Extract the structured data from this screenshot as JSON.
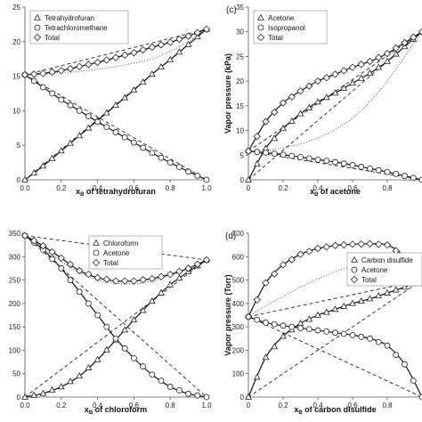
{
  "chart_data": [
    {
      "type": "line",
      "panel_label": "",
      "xlabel": "x_B of tetrahydrofuran",
      "ylabel": "",
      "xlim": [
        0,
        1.0
      ],
      "ylim": [
        0,
        25
      ],
      "xticks": [
        "0.0",
        "0.2",
        "0.4",
        "0.6",
        "0.8",
        "1.0"
      ],
      "yticks": [
        "0",
        "5",
        "10",
        "15",
        "20",
        "25"
      ],
      "legend_position": "top-left",
      "series": [
        {
          "name": "Tetrahydrofuran",
          "marker": "triangle",
          "x": [
            0,
            0.1,
            0.2,
            0.3,
            0.4,
            0.5,
            0.6,
            0.7,
            0.8,
            0.9,
            1.0
          ],
          "y": [
            0,
            2.0,
            4.2,
            6.4,
            8.6,
            10.8,
            13.0,
            15.3,
            17.4,
            19.6,
            21.8
          ]
        },
        {
          "name": "Tetrachloromethane",
          "marker": "circle",
          "x": [
            0,
            0.1,
            0.2,
            0.3,
            0.4,
            0.5,
            0.6,
            0.7,
            0.8,
            0.9,
            1.0
          ],
          "y": [
            15.2,
            13.4,
            11.6,
            10.0,
            8.4,
            6.9,
            5.4,
            3.9,
            2.5,
            1.2,
            0
          ]
        },
        {
          "name": "Total",
          "marker": "diamond",
          "x": [
            0,
            0.1,
            0.2,
            0.3,
            0.4,
            0.5,
            0.6,
            0.7,
            0.8,
            0.9,
            1.0
          ],
          "y": [
            15.2,
            15.4,
            15.8,
            16.4,
            17.0,
            17.7,
            18.4,
            19.2,
            19.9,
            20.8,
            21.8
          ]
        }
      ],
      "ideal_lines": {
        "pA": 21.8,
        "pB": 15.2,
        "total_curve": [
          15.2,
          15.3,
          15.5,
          15.7,
          16.0,
          16.4,
          16.9,
          17.5,
          18.6,
          20.0,
          21.8
        ]
      }
    },
    {
      "type": "line",
      "panel_label": "(c)",
      "xlabel": "x_B of acetone",
      "ylabel": "Vapor pressure (kPa)",
      "xlim": [
        0,
        1.0
      ],
      "ylim": [
        0,
        35
      ],
      "xticks": [
        "0",
        "0.2",
        "0.4",
        "0.6",
        "0.8"
      ],
      "yticks": [
        "0",
        "5",
        "10",
        "15",
        "20",
        "25",
        "30",
        "35"
      ],
      "legend_position": "top-left",
      "series": [
        {
          "name": "Acetone",
          "marker": "triangle",
          "x": [
            0,
            0.1,
            0.2,
            0.3,
            0.4,
            0.5,
            0.6,
            0.7,
            0.8,
            0.9,
            1.0
          ],
          "y": [
            0,
            6.4,
            10.4,
            13.4,
            15.8,
            17.6,
            19.6,
            21.6,
            24.0,
            27.0,
            30.0
          ]
        },
        {
          "name": "Isopropanol",
          "marker": "circle",
          "x": [
            0,
            0.1,
            0.2,
            0.3,
            0.4,
            0.5,
            0.6,
            0.7,
            0.8,
            0.9,
            1.0
          ],
          "y": [
            5.8,
            5.5,
            5.1,
            4.6,
            4.1,
            3.6,
            3.0,
            2.3,
            1.6,
            0.8,
            0
          ]
        },
        {
          "name": "Total",
          "marker": "diamond",
          "x": [
            0,
            0.1,
            0.2,
            0.3,
            0.4,
            0.5,
            0.6,
            0.7,
            0.8,
            0.9,
            1.0
          ],
          "y": [
            5.8,
            11.8,
            15.6,
            18.0,
            20.0,
            21.4,
            22.8,
            24.0,
            25.6,
            27.8,
            30.0
          ]
        }
      ],
      "ideal_lines": {
        "pA": 30.0,
        "pB": 5.8,
        "total_curve": [
          5.8,
          6.0,
          6.5,
          7.3,
          8.5,
          10.2,
          12.5,
          15.8,
          20.0,
          25.0,
          30.0
        ]
      }
    },
    {
      "type": "line",
      "panel_label": "",
      "xlabel": "x_B of chloroform",
      "ylabel": "",
      "xlim": [
        0,
        1.0
      ],
      "ylim": [
        0,
        350
      ],
      "xticks": [
        "0.0",
        "0.2",
        "0.4",
        "0.6",
        "0.8",
        "1.0"
      ],
      "yticks": [
        "0",
        "50",
        "100",
        "150",
        "200",
        "250",
        "300",
        "350"
      ],
      "legend_position": "top-center",
      "series": [
        {
          "name": "Chloroform",
          "marker": "triangle",
          "x": [
            0,
            0.1,
            0.2,
            0.3,
            0.4,
            0.5,
            0.6,
            0.7,
            0.8,
            0.9,
            1.0
          ],
          "y": [
            0,
            8,
            22,
            45,
            80,
            122,
            165,
            205,
            240,
            268,
            293
          ]
        },
        {
          "name": "Acetone",
          "marker": "circle",
          "x": [
            0,
            0.1,
            0.2,
            0.3,
            0.4,
            0.5,
            0.6,
            0.7,
            0.8,
            0.9,
            1.0
          ],
          "y": [
            345,
            315,
            275,
            225,
            175,
            125,
            83,
            48,
            22,
            7,
            0
          ]
        },
        {
          "name": "Total",
          "marker": "diamond",
          "x": [
            0,
            0.1,
            0.2,
            0.3,
            0.4,
            0.5,
            0.6,
            0.7,
            0.8,
            0.9,
            1.0
          ],
          "y": [
            345,
            323,
            297,
            270,
            255,
            248,
            248,
            253,
            262,
            275,
            293
          ]
        }
      ],
      "ideal_lines": {
        "pA": 293,
        "pB": 345,
        "total_curve": [
          345,
          318,
          290,
          266,
          250,
          243,
          242,
          248,
          260,
          275,
          293
        ]
      }
    },
    {
      "type": "line",
      "panel_label": "(d)",
      "xlabel": "x_B of carbon disulfide",
      "ylabel": "Vapor pressure (Torr)",
      "xlim": [
        0,
        1.0
      ],
      "ylim": [
        0,
        700
      ],
      "xticks": [
        "0",
        "0.2",
        "0.4",
        "0.6",
        "0.8"
      ],
      "yticks": [
        "0",
        "100",
        "200",
        "300",
        "400",
        "500",
        "600",
        "700"
      ],
      "legend_position": "center-right",
      "series": [
        {
          "name": "Carbon disulfide",
          "marker": "triangle",
          "x": [
            0,
            0.1,
            0.2,
            0.3,
            0.4,
            0.5,
            0.6,
            0.7,
            0.8,
            0.9,
            1.0
          ],
          "y": [
            0,
            170,
            260,
            315,
            350,
            375,
            400,
            420,
            445,
            470,
            500
          ]
        },
        {
          "name": "Acetone",
          "marker": "circle",
          "x": [
            0,
            0.1,
            0.2,
            0.3,
            0.4,
            0.5,
            0.6,
            0.7,
            0.8,
            0.9,
            1.0
          ],
          "y": [
            343,
            318,
            305,
            295,
            285,
            275,
            265,
            250,
            220,
            140,
            0
          ]
        },
        {
          "name": "Total",
          "marker": "diamond",
          "x": [
            0,
            0.1,
            0.2,
            0.3,
            0.4,
            0.5,
            0.6,
            0.7,
            0.8,
            0.9,
            1.0
          ],
          "y": [
            343,
            488,
            565,
            610,
            635,
            648,
            653,
            655,
            650,
            600,
            500
          ]
        }
      ],
      "ideal_lines": {
        "pA": 500,
        "pB": 343,
        "total_curve": [
          343,
          390,
          430,
          470,
          505,
          535,
          560,
          585,
          600,
          580,
          500
        ]
      }
    }
  ]
}
